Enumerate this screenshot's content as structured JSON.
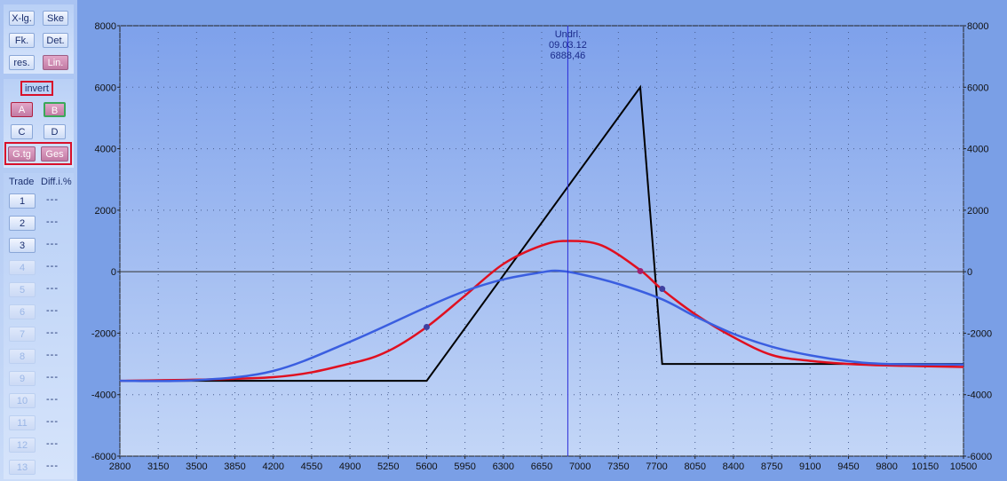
{
  "sidebar": {
    "top_buttons": [
      "X-lg.",
      "Ske",
      "Fk.",
      "Det.",
      "res.",
      "Lin."
    ],
    "invert_label": "invert",
    "mid_buttons": [
      "A",
      "B",
      "C",
      "D",
      "G.tg",
      "Ges"
    ],
    "trade_header": "Trade",
    "diff_header": "Diff.i.%",
    "trades": [
      "1",
      "2",
      "3",
      "4",
      "5",
      "6",
      "7",
      "8",
      "9",
      "10",
      "11",
      "12",
      "13"
    ],
    "diff_placeholder": "---"
  },
  "chart_data": {
    "type": "line",
    "xlim": [
      2800,
      10500
    ],
    "ylim": [
      -6000,
      8000
    ],
    "x_ticks": [
      "2800",
      "3150",
      "3500",
      "3850",
      "4200",
      "4550",
      "4900",
      "5250",
      "5600",
      "5950",
      "6300",
      "6650",
      "7000",
      "7350",
      "7700",
      "8050",
      "8400",
      "8750",
      "9100",
      "9450",
      "9800",
      "10150",
      "10500"
    ],
    "y_ticks": [
      "8000",
      "6000",
      "4000",
      "2000",
      "0",
      "-2000",
      "-4000",
      "-6000"
    ],
    "underlying": {
      "label": "Undrl.",
      "date": "09.03.12",
      "value": "6888,46",
      "x": 6888.46
    },
    "series": [
      {
        "color": "#000000",
        "points": [
          [
            2800,
            -3550
          ],
          [
            5600,
            -3550
          ],
          [
            7550,
            6000
          ],
          [
            7750,
            -3000
          ],
          [
            10500,
            -3000
          ]
        ]
      },
      {
        "color": "#e01020",
        "points": [
          [
            2800,
            -3550
          ],
          [
            4200,
            -3430
          ],
          [
            4900,
            -2990
          ],
          [
            5250,
            -2580
          ],
          [
            5600,
            -1800
          ],
          [
            5950,
            -780
          ],
          [
            6300,
            250
          ],
          [
            6650,
            850
          ],
          [
            6888,
            1000
          ],
          [
            7200,
            850
          ],
          [
            7550,
            50
          ],
          [
            7750,
            -580
          ],
          [
            8050,
            -1380
          ],
          [
            8400,
            -2130
          ],
          [
            8750,
            -2710
          ],
          [
            9100,
            -2900
          ],
          [
            9450,
            -3000
          ],
          [
            9800,
            -3050
          ],
          [
            10500,
            -3100
          ]
        ]
      },
      {
        "color": "#3a5ee0",
        "points": [
          [
            2800,
            -3550
          ],
          [
            3500,
            -3530
          ],
          [
            4200,
            -3230
          ],
          [
            4900,
            -2280
          ],
          [
            5600,
            -1150
          ],
          [
            5950,
            -630
          ],
          [
            6300,
            -250
          ],
          [
            6650,
            -20
          ],
          [
            6800,
            30
          ],
          [
            7000,
            -80
          ],
          [
            7350,
            -400
          ],
          [
            7750,
            -900
          ],
          [
            8050,
            -1450
          ],
          [
            8400,
            -2020
          ],
          [
            8750,
            -2440
          ],
          [
            9100,
            -2720
          ],
          [
            9450,
            -2910
          ],
          [
            9800,
            -3000
          ],
          [
            10500,
            -3020
          ]
        ]
      }
    ],
    "markers": [
      {
        "color": "#4040a0",
        "x": 5600,
        "y": -1800
      },
      {
        "color": "#a02070",
        "x": 7550,
        "y": 20
      },
      {
        "color": "#4040a0",
        "x": 7750,
        "y": -560
      }
    ]
  }
}
